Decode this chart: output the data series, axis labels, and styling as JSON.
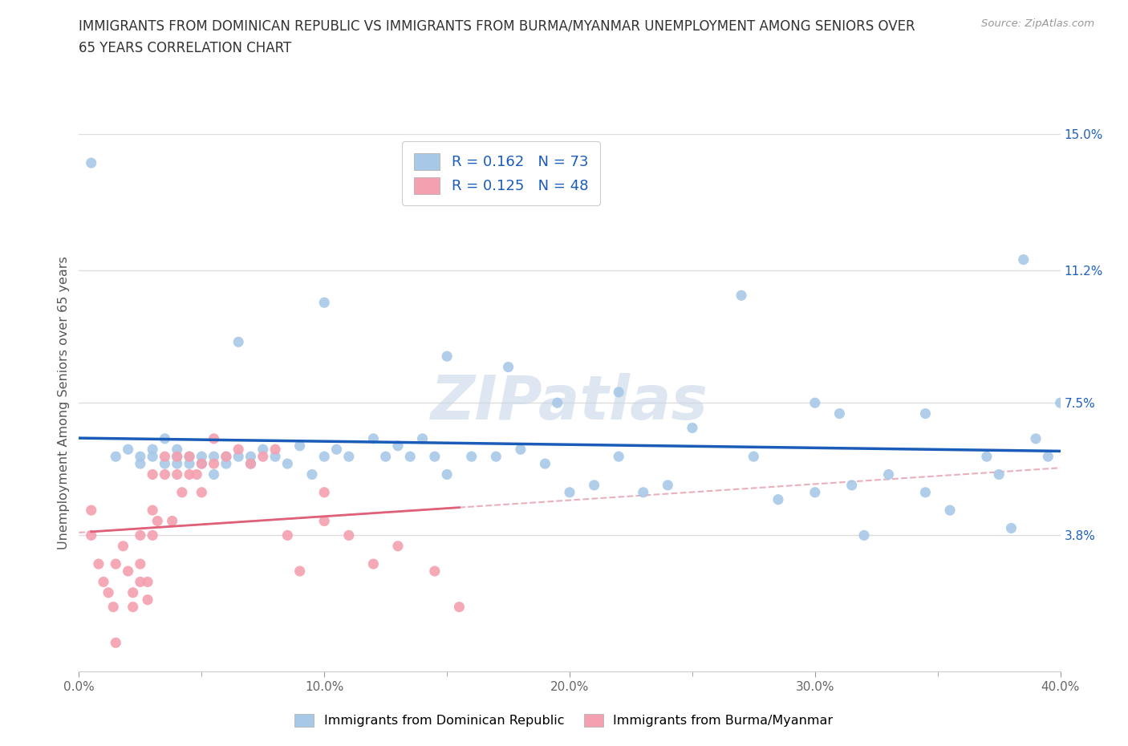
{
  "title_line1": "IMMIGRANTS FROM DOMINICAN REPUBLIC VS IMMIGRANTS FROM BURMA/MYANMAR UNEMPLOYMENT AMONG SENIORS OVER",
  "title_line2": "65 YEARS CORRELATION CHART",
  "source": "Source: ZipAtlas.com",
  "ylabel": "Unemployment Among Seniors over 65 years",
  "legend_label1": "Immigrants from Dominican Republic",
  "legend_label2": "Immigrants from Burma/Myanmar",
  "R1": 0.162,
  "N1": 73,
  "R2": 0.125,
  "N2": 48,
  "color1": "#A8C8E8",
  "color2": "#F4A0B0",
  "line_color1": "#1A5CB8",
  "line_color2": "#E0607A",
  "trendline_color2": "#E8B0BC",
  "xlim": [
    0,
    0.4
  ],
  "ylim": [
    0,
    0.15
  ],
  "xticks": [
    0.0,
    0.05,
    0.1,
    0.15,
    0.2,
    0.25,
    0.3,
    0.35,
    0.4
  ],
  "xticklabels": [
    "0.0%",
    "",
    "10.0%",
    "",
    "20.0%",
    "",
    "30.0%",
    "",
    "40.0%"
  ],
  "yticks": [
    0.0,
    0.038,
    0.075,
    0.112,
    0.15
  ],
  "yticklabels": [
    "",
    "3.8%",
    "7.5%",
    "11.2%",
    "15.0%"
  ],
  "scatter1_x": [
    0.005,
    0.065,
    0.1,
    0.15,
    0.175,
    0.195,
    0.22,
    0.25,
    0.27,
    0.31,
    0.015,
    0.02,
    0.025,
    0.025,
    0.03,
    0.03,
    0.035,
    0.035,
    0.04,
    0.04,
    0.04,
    0.045,
    0.045,
    0.05,
    0.05,
    0.055,
    0.055,
    0.06,
    0.06,
    0.065,
    0.07,
    0.07,
    0.075,
    0.08,
    0.085,
    0.09,
    0.095,
    0.1,
    0.105,
    0.11,
    0.12,
    0.125,
    0.13,
    0.135,
    0.14,
    0.145,
    0.15,
    0.16,
    0.17,
    0.18,
    0.19,
    0.2,
    0.21,
    0.22,
    0.23,
    0.24,
    0.275,
    0.285,
    0.3,
    0.315,
    0.32,
    0.33,
    0.345,
    0.355,
    0.37,
    0.375,
    0.38,
    0.39,
    0.395,
    0.4,
    0.3,
    0.345,
    0.385
  ],
  "scatter1_y": [
    0.142,
    0.092,
    0.103,
    0.088,
    0.085,
    0.075,
    0.078,
    0.068,
    0.105,
    0.072,
    0.06,
    0.062,
    0.06,
    0.058,
    0.062,
    0.06,
    0.058,
    0.065,
    0.058,
    0.062,
    0.06,
    0.06,
    0.058,
    0.06,
    0.058,
    0.06,
    0.055,
    0.06,
    0.058,
    0.06,
    0.06,
    0.058,
    0.062,
    0.06,
    0.058,
    0.063,
    0.055,
    0.06,
    0.062,
    0.06,
    0.065,
    0.06,
    0.063,
    0.06,
    0.065,
    0.06,
    0.055,
    0.06,
    0.06,
    0.062,
    0.058,
    0.05,
    0.052,
    0.06,
    0.05,
    0.052,
    0.06,
    0.048,
    0.05,
    0.052,
    0.038,
    0.055,
    0.05,
    0.045,
    0.06,
    0.055,
    0.04,
    0.065,
    0.06,
    0.075,
    0.075,
    0.072,
    0.115
  ],
  "scatter2_x": [
    0.005,
    0.005,
    0.008,
    0.01,
    0.012,
    0.014,
    0.015,
    0.015,
    0.018,
    0.02,
    0.022,
    0.022,
    0.025,
    0.025,
    0.025,
    0.028,
    0.028,
    0.03,
    0.03,
    0.03,
    0.032,
    0.035,
    0.035,
    0.038,
    0.04,
    0.04,
    0.042,
    0.045,
    0.045,
    0.048,
    0.05,
    0.05,
    0.055,
    0.055,
    0.06,
    0.065,
    0.07,
    0.075,
    0.08,
    0.085,
    0.09,
    0.1,
    0.1,
    0.11,
    0.12,
    0.13,
    0.145,
    0.155
  ],
  "scatter2_y": [
    0.045,
    0.038,
    0.03,
    0.025,
    0.022,
    0.018,
    0.008,
    0.03,
    0.035,
    0.028,
    0.022,
    0.018,
    0.025,
    0.03,
    0.038,
    0.025,
    0.02,
    0.038,
    0.045,
    0.055,
    0.042,
    0.055,
    0.06,
    0.042,
    0.055,
    0.06,
    0.05,
    0.055,
    0.06,
    0.055,
    0.05,
    0.058,
    0.058,
    0.065,
    0.06,
    0.062,
    0.058,
    0.06,
    0.062,
    0.038,
    0.028,
    0.042,
    0.05,
    0.038,
    0.03,
    0.035,
    0.028,
    0.018
  ],
  "watermark": "ZIPatlas",
  "background_color": "#ffffff",
  "grid_color": "#DDDDDD"
}
